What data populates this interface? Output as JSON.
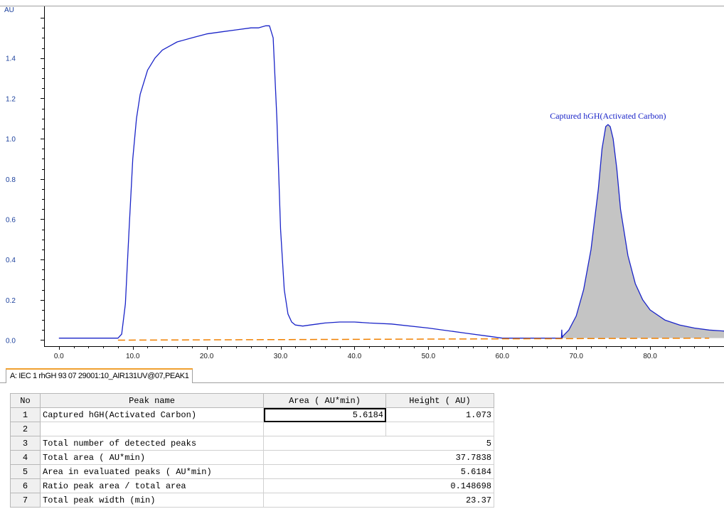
{
  "chart_data": {
    "type": "line",
    "title": "",
    "xlabel": "",
    "ylabel": "AU",
    "xlim": [
      -2,
      90
    ],
    "ylim": [
      -0.03,
      1.66
    ],
    "x_ticks": [
      "0.0",
      "10.0",
      "20.0",
      "30.0",
      "40.0",
      "50.0",
      "60.0",
      "70.0",
      "80.0"
    ],
    "y_ticks": [
      "0.0",
      "0.2",
      "0.4",
      "0.6",
      "0.8",
      "1.0",
      "1.2",
      "1.4"
    ],
    "series": [
      {
        "color": "#1a24c8",
        "x": [
          0,
          8,
          8.5,
          9.0,
          9.5,
          10,
          10.5,
          11,
          12,
          13,
          14,
          15,
          16,
          18,
          20,
          22,
          24,
          26,
          27,
          28,
          28.5,
          29,
          29.5,
          30,
          30.5,
          31,
          31.5,
          32,
          33,
          34,
          35,
          36,
          38,
          40,
          42,
          45,
          50,
          55,
          58,
          60,
          62,
          65,
          67.5,
          68,
          68.05,
          68.1,
          68.2,
          69,
          70,
          71,
          72,
          73,
          73.5,
          74,
          74.3,
          74.6,
          75,
          75.5,
          76,
          77,
          78,
          79,
          80,
          82,
          84,
          86,
          88,
          90
        ],
        "y": [
          0.01,
          0.01,
          0.03,
          0.18,
          0.55,
          0.9,
          1.1,
          1.22,
          1.34,
          1.4,
          1.44,
          1.46,
          1.48,
          1.5,
          1.52,
          1.53,
          1.54,
          1.55,
          1.55,
          1.56,
          1.56,
          1.5,
          1.1,
          0.55,
          0.25,
          0.13,
          0.09,
          0.075,
          0.07,
          0.075,
          0.08,
          0.085,
          0.09,
          0.09,
          0.085,
          0.08,
          0.06,
          0.035,
          0.02,
          0.01,
          0.01,
          0.01,
          0.01,
          0.01,
          0.05,
          0.01,
          0.02,
          0.05,
          0.12,
          0.25,
          0.45,
          0.75,
          0.95,
          1.06,
          1.07,
          1.06,
          1.0,
          0.85,
          0.65,
          0.42,
          0.28,
          0.2,
          0.15,
          0.1,
          0.075,
          0.06,
          0.05,
          0.045
        ]
      },
      {
        "color": "#f08000",
        "style": "dashed",
        "x": [
          8,
          88
        ],
        "y": [
          0.0,
          0.01
        ]
      }
    ],
    "shaded_peak": {
      "color": "#c4c4c4",
      "x_start": 68.2,
      "x_end": 90
    },
    "annotations": [
      {
        "text": "Captured hGH(Activated Carbon)",
        "x": 74.3,
        "y": 1.07
      }
    ]
  },
  "tab": {
    "label": "A: IEC 1 rhGH 93 07 29001:10_AIR131UV@07,PEAK1"
  },
  "table": {
    "headers": {
      "no": "No",
      "name": "Peak name",
      "area": "Area ( AU*min)",
      "height": "Height ( AU)"
    },
    "rows": [
      {
        "no": "1",
        "name": "Captured hGH(Activated Carbon)",
        "area": "5.6184",
        "height": "1.073"
      },
      {
        "no": "2",
        "name": "",
        "area": "",
        "height": ""
      },
      {
        "no": "3",
        "name": "Total number of detected peaks",
        "value": "5"
      },
      {
        "no": "4",
        "name": "Total area ( AU*min)",
        "value": "37.7838"
      },
      {
        "no": "5",
        "name": "Area in evaluated peaks ( AU*min)",
        "value": "5.6184"
      },
      {
        "no": "6",
        "name": "Ratio peak area / total area",
        "value": "0.148698"
      },
      {
        "no": "7",
        "name": "Total peak width (min)",
        "value": "23.37"
      }
    ]
  }
}
